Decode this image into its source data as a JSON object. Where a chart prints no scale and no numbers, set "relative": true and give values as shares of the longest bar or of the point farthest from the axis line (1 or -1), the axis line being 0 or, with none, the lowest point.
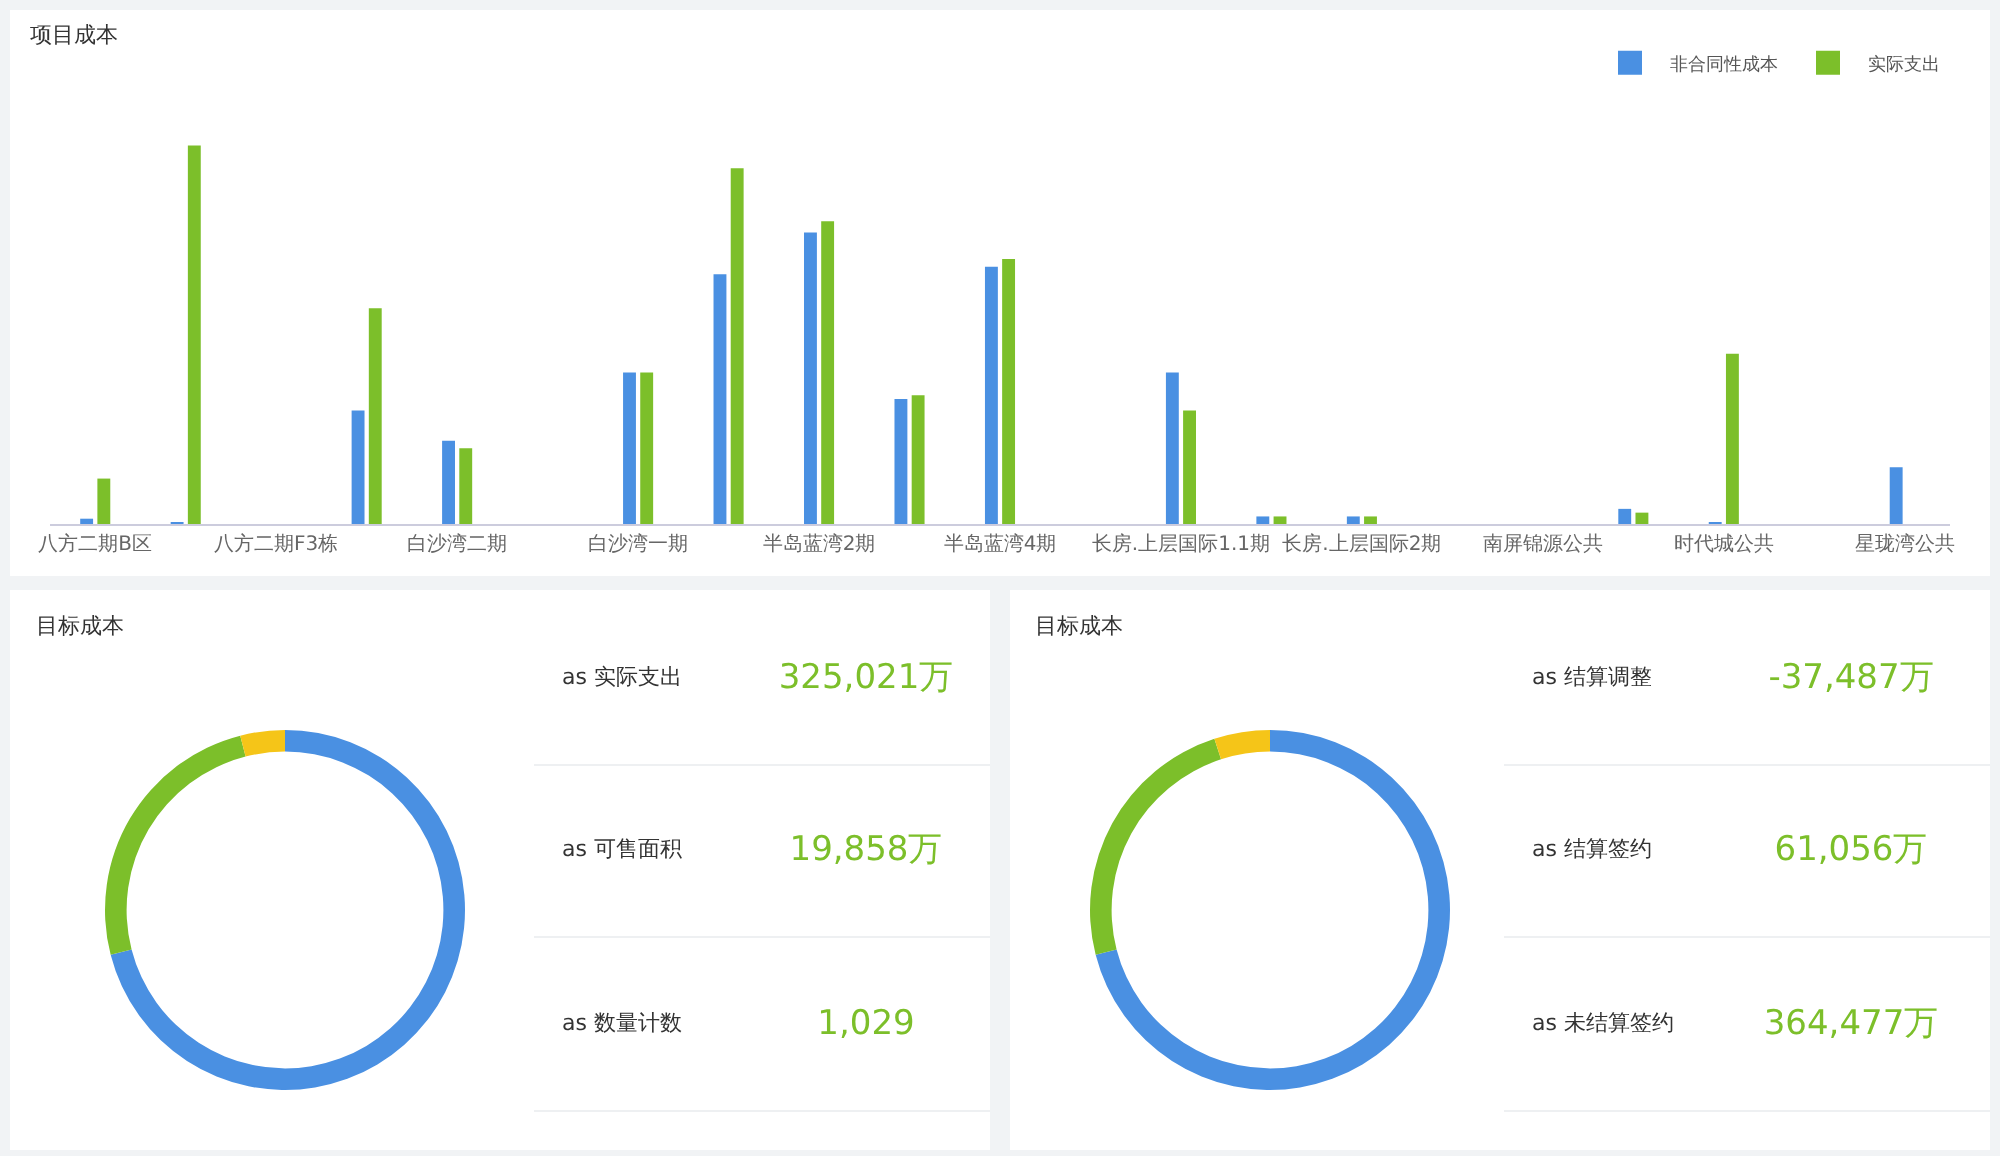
{
  "chart_data": [
    {
      "type": "bar",
      "title": "项目成本",
      "relative": true,
      "legend": "top right",
      "grid": false,
      "categories": [
        "八方二期B区",
        null,
        "八方二期F3栋",
        null,
        "白沙湾二期",
        null,
        "白沙湾一期",
        null,
        "半岛蓝湾2期",
        null,
        "半岛蓝湾4期",
        null,
        "长房.上层国际1.1期",
        null,
        "长房.上层国际2期",
        null,
        "南屏锦源公共",
        null,
        "时代城公共",
        null,
        "星珑湾公共"
      ],
      "series": [
        {
          "name": "非合同性成本",
          "color": "#4a90e2",
          "values": [
            0.014,
            0.005,
            0,
            0.3,
            0.22,
            0,
            0.4,
            0.66,
            0.77,
            0.33,
            0.68,
            0,
            0.4,
            0.02,
            0.02,
            0,
            0,
            0.04,
            0.005,
            0,
            0.15
          ]
        },
        {
          "name": "实际支出",
          "color": "#7cbf2a",
          "values": [
            0.12,
            1,
            0,
            0.57,
            0.2,
            0,
            0.4,
            0.94,
            0.8,
            0.34,
            0.7,
            0,
            0.3,
            0.02,
            0.02,
            0,
            0,
            0.03,
            0.45,
            0,
            0
          ]
        }
      ]
    },
    {
      "type": "donut",
      "title": "目标成本",
      "categories": [
        null,
        null,
        null
      ],
      "values": [
        71,
        25,
        4
      ],
      "colors": [
        "#4a90e2",
        "#7cbf2a",
        "#f5c518"
      ]
    },
    {
      "type": "other",
      "categories": [
        "as 实际支出",
        "as 可售面积",
        "as 数量计数"
      ],
      "value_labels": [
        "325,021万",
        "19,858万",
        "1,029"
      ]
    },
    {
      "type": "donut",
      "title": "目标成本",
      "categories": [
        null,
        null,
        null
      ],
      "values": [
        71,
        24,
        5
      ],
      "colors": [
        "#4a90e2",
        "#7cbf2a",
        "#f5c518"
      ]
    },
    {
      "type": "other",
      "categories": [
        "as 结算调整",
        "as 结算签约",
        "as 未结算签约"
      ],
      "value_labels": [
        "-37,487万",
        "61,056万",
        "364,477万"
      ]
    }
  ]
}
